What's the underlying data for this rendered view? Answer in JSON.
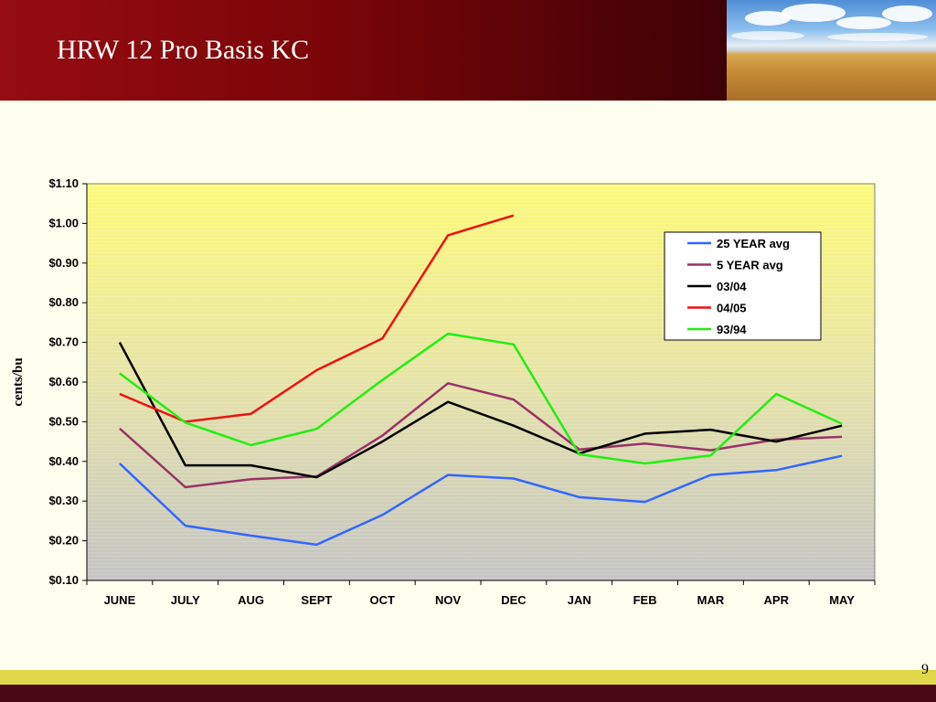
{
  "slide": {
    "title": "HRW 12 Pro Basis KC",
    "page_number": "9"
  },
  "colors": {
    "header_dark_red": "#7a0508",
    "background": "#fffff0",
    "bottom_band_yellow": "#e0d84a",
    "bottom_band_maroon": "#4a0814"
  },
  "chart_data": {
    "type": "line",
    "ylabel": "cents/bu",
    "xlabel": "",
    "ylim": [
      0.1,
      1.1
    ],
    "y_ticks": [
      "$0.10",
      "$0.20",
      "$0.30",
      "$0.40",
      "$0.50",
      "$0.60",
      "$0.70",
      "$0.80",
      "$0.90",
      "$1.00",
      "$1.10"
    ],
    "y_tick_values": [
      0.1,
      0.2,
      0.3,
      0.4,
      0.5,
      0.6,
      0.7,
      0.8,
      0.9,
      1.0,
      1.1
    ],
    "categories": [
      "JUNE",
      "JULY",
      "AUG",
      "SEPT",
      "OCT",
      "NOV",
      "DEC",
      "JAN",
      "FEB",
      "MAR",
      "APR",
      "MAY"
    ],
    "legend_position": "top-right",
    "plot_background": "yellow-to-gray gradient with horizontal stripes",
    "series": [
      {
        "name": "25 YEAR avg",
        "color": "#3366ff",
        "values": [
          0.395,
          0.238,
          0.213,
          0.19,
          0.265,
          0.366,
          0.357,
          0.31,
          0.298,
          0.366,
          0.378,
          0.414
        ]
      },
      {
        "name": "5 YEAR avg",
        "color": "#993366",
        "values": [
          0.483,
          0.335,
          0.355,
          0.362,
          0.465,
          0.597,
          0.556,
          0.43,
          0.445,
          0.428,
          0.455,
          0.462
        ]
      },
      {
        "name": "03/04",
        "color": "#000000",
        "values": [
          0.7,
          0.39,
          0.39,
          0.36,
          0.45,
          0.55,
          0.49,
          0.42,
          0.47,
          0.48,
          0.45,
          0.49
        ]
      },
      {
        "name": "04/05",
        "color": "#ee1111",
        "values": [
          0.57,
          0.5,
          0.52,
          0.63,
          0.71,
          0.97,
          1.02,
          null,
          null,
          null,
          null,
          null
        ]
      },
      {
        "name": "93/94",
        "color": "#22ee11",
        "values": [
          0.622,
          0.498,
          0.441,
          0.482,
          0.605,
          0.722,
          0.695,
          0.418,
          0.395,
          0.415,
          0.57,
          0.495
        ]
      }
    ]
  }
}
